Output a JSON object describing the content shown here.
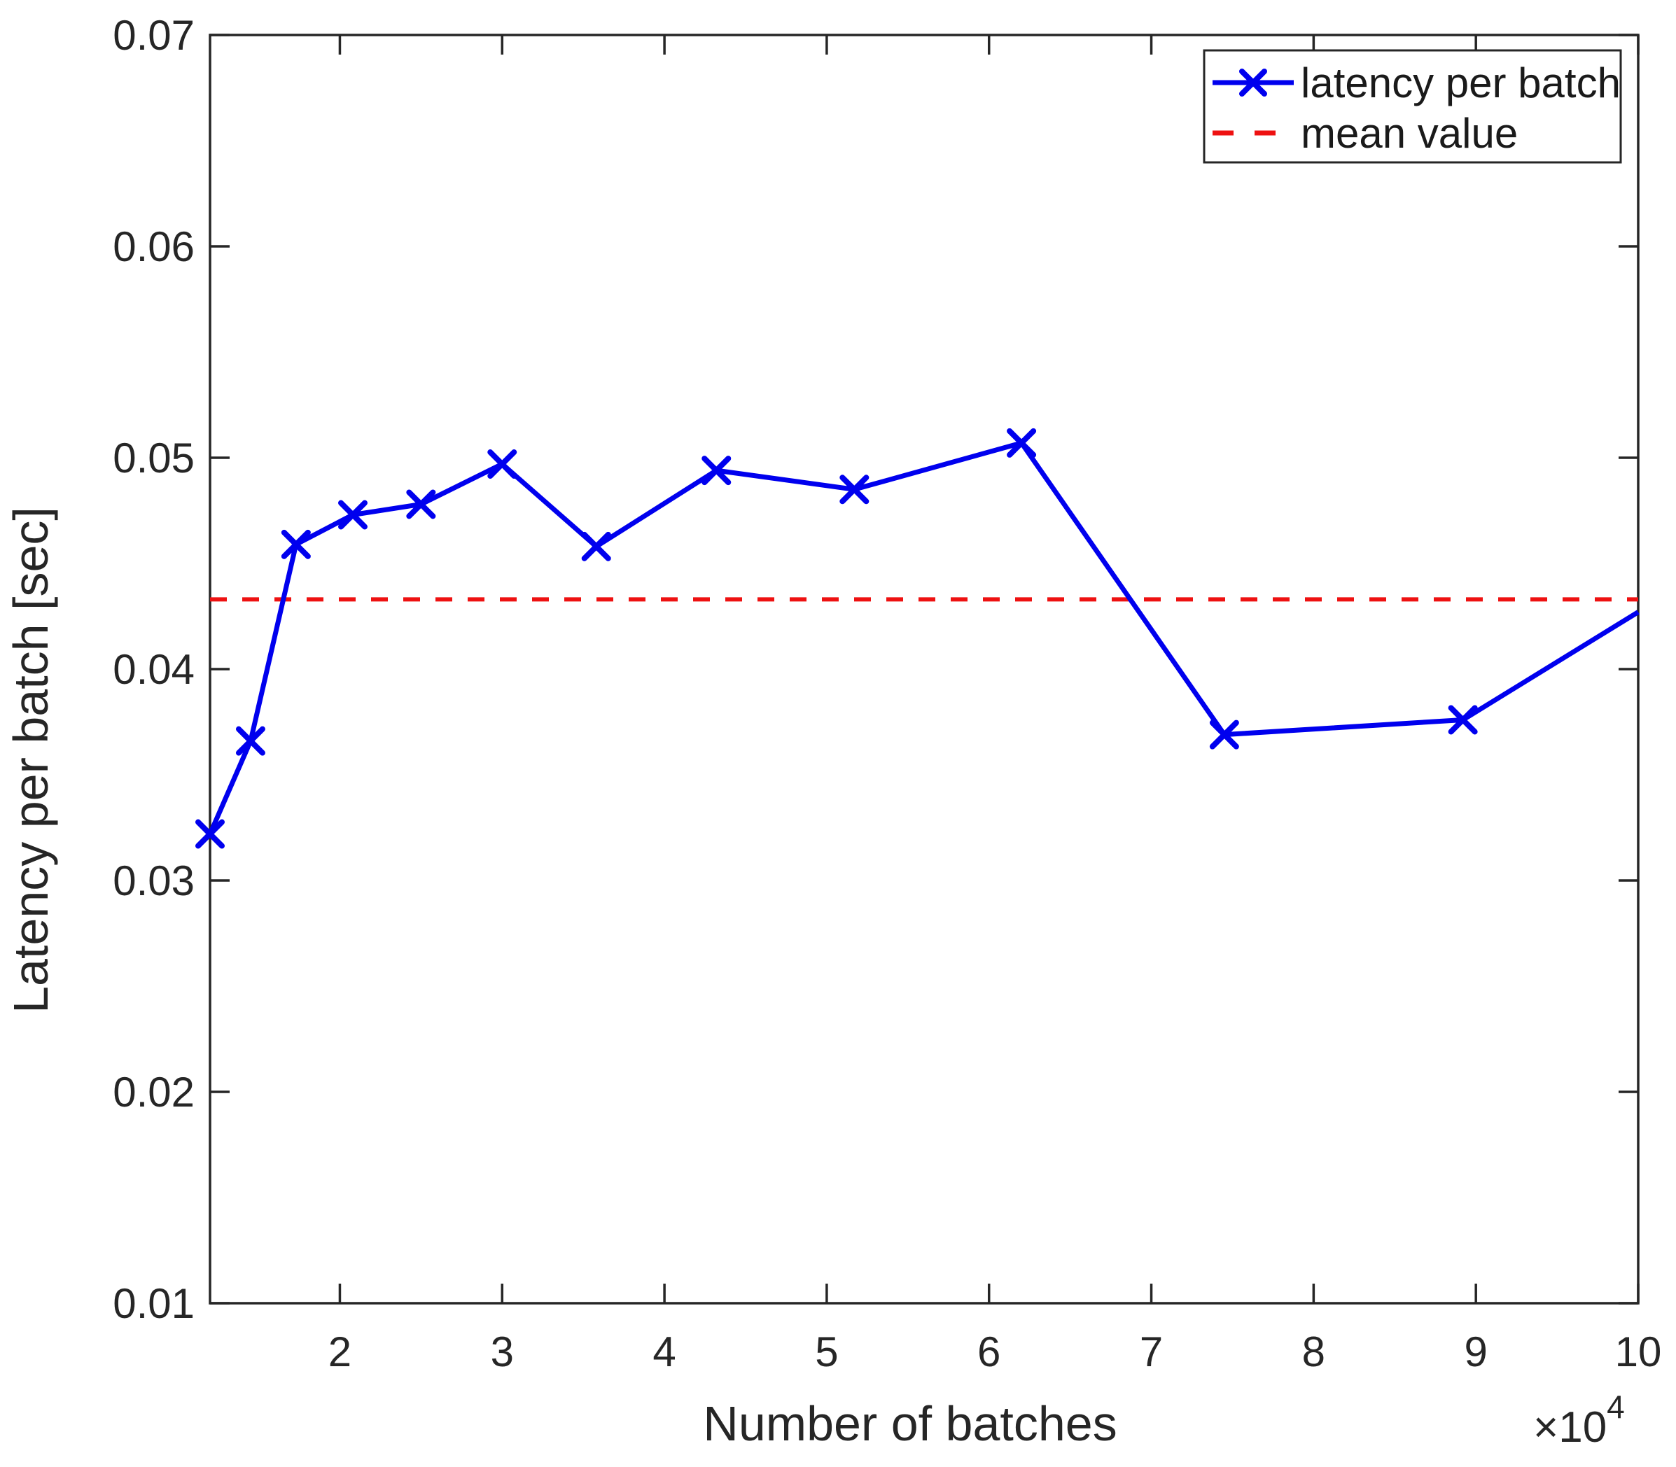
{
  "figure": {
    "background": "#ffffff",
    "axis_color": "#262626",
    "text_color": "#262626"
  },
  "chart_data": {
    "type": "line",
    "title": "",
    "xlabel": "Number of batches",
    "ylabel": "Latency per batch [sec]",
    "x_scale_label": {
      "prefix": "×10",
      "exponent": "4"
    },
    "x_unit_scale": 10000,
    "xlim": [
      1.2,
      10
    ],
    "ylim": [
      0.01,
      0.07
    ],
    "xticks": [
      2,
      3,
      4,
      5,
      6,
      7,
      8,
      9,
      10
    ],
    "yticks": [
      0.01,
      0.02,
      0.03,
      0.04,
      0.05,
      0.06,
      0.07
    ],
    "grid": false,
    "legend_position": "top-right",
    "series": [
      {
        "name": "latency per batch",
        "type": "line",
        "color": "#0000ee",
        "marker": "x",
        "x": [
          1.2,
          1.45,
          1.73,
          2.08,
          2.5,
          3.0,
          3.58,
          4.32,
          5.17,
          6.2,
          7.45,
          8.92,
          10.0
        ],
        "y": [
          0.0322,
          0.0366,
          0.0459,
          0.0473,
          0.0478,
          0.0497,
          0.0458,
          0.0494,
          0.0485,
          0.0507,
          0.0369,
          0.0376,
          0.0427
        ],
        "last_point_marker_clipped": true
      },
      {
        "name": "mean value",
        "type": "horizontal-dashed-line",
        "color": "#ee1111",
        "value": 0.0433
      }
    ],
    "legend": [
      "latency per batch",
      "mean value"
    ]
  }
}
